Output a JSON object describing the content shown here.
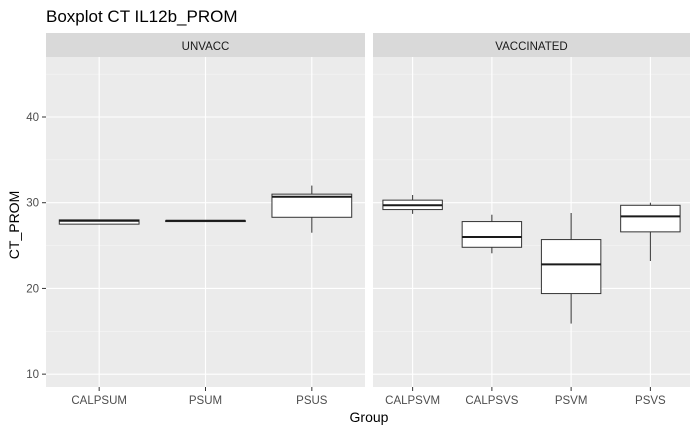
{
  "chart_data": {
    "type": "boxplot",
    "title": "Boxplot CT IL12b_PROM",
    "xlabel": "Group",
    "ylabel": "CT_PROM",
    "ylim": [
      8.5,
      47
    ],
    "yticks": [
      10,
      20,
      30,
      40
    ],
    "grid": true,
    "facets": [
      {
        "name": "UNVACC",
        "categories": [
          "CALPSUM",
          "PSUM",
          "PSUS"
        ],
        "boxes": [
          {
            "category": "CALPSUM",
            "min": 27.5,
            "q1": 27.5,
            "median": 27.9,
            "q3": 28.0,
            "max": 28.0
          },
          {
            "category": "PSUM",
            "min": 27.8,
            "q1": 27.8,
            "median": 27.9,
            "q3": 27.9,
            "max": 27.9
          },
          {
            "category": "PSUS",
            "min": 26.5,
            "q1": 28.3,
            "median": 30.7,
            "q3": 31.0,
            "max": 32.0
          }
        ]
      },
      {
        "name": "VACCINATED",
        "categories": [
          "CALPSVM",
          "CALPSVS",
          "PSVM",
          "PSVS"
        ],
        "boxes": [
          {
            "category": "CALPSVM",
            "min": 28.7,
            "q1": 29.2,
            "median": 29.7,
            "q3": 30.3,
            "max": 30.9
          },
          {
            "category": "CALPSVS",
            "min": 24.1,
            "q1": 24.8,
            "median": 26.0,
            "q3": 27.8,
            "max": 28.6
          },
          {
            "category": "PSVM",
            "min": 15.9,
            "q1": 19.4,
            "median": 22.8,
            "q3": 25.7,
            "max": 28.8
          },
          {
            "category": "PSVS",
            "min": 23.2,
            "q1": 26.6,
            "median": 28.4,
            "q3": 29.7,
            "max": 30.0
          }
        ]
      }
    ]
  }
}
